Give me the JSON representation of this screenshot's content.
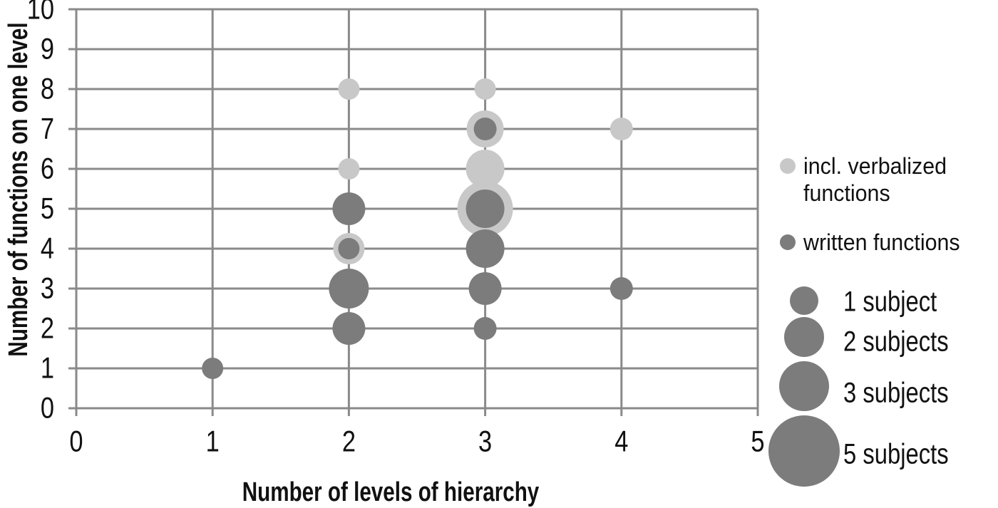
{
  "chart_data": {
    "type": "bubble",
    "title": "",
    "xlabel": "Number of levels of hierarchy",
    "ylabel": "Number of functions on one level",
    "xlim": [
      0,
      5
    ],
    "ylim": [
      0,
      10
    ],
    "xtick_labels": [
      "0",
      "1",
      "2",
      "3",
      "4",
      "5"
    ],
    "ytick_labels": [
      "0",
      "1",
      "2",
      "3",
      "4",
      "5",
      "6",
      "7",
      "8",
      "9",
      "10"
    ],
    "grid": true,
    "legend_position": "right",
    "series": [
      {
        "name": "incl. verbalized functions",
        "color": "#c8c8c8",
        "points": [
          {
            "x": 2,
            "y": 8,
            "subjects": 1,
            "r": 15
          },
          {
            "x": 2,
            "y": 6,
            "subjects": 1,
            "r": 15
          },
          {
            "x": 2,
            "y": 4,
            "subjects": 2,
            "r": 22
          },
          {
            "x": 3,
            "y": 8,
            "subjects": 1,
            "r": 15
          },
          {
            "x": 3,
            "y": 7,
            "subjects": 3,
            "r": 26
          },
          {
            "x": 3,
            "y": 6,
            "subjects": 3,
            "r": 27
          },
          {
            "x": 3,
            "y": 5,
            "subjects": 5,
            "r": 39
          },
          {
            "x": 4,
            "y": 7,
            "subjects": 1,
            "r": 16
          }
        ]
      },
      {
        "name": "written functions",
        "color": "#7c7c7c",
        "points": [
          {
            "x": 1,
            "y": 1,
            "subjects": 1,
            "r": 15
          },
          {
            "x": 2,
            "y": 2,
            "subjects": 2,
            "r": 23
          },
          {
            "x": 2,
            "y": 3,
            "subjects": 3,
            "r": 28
          },
          {
            "x": 2,
            "y": 4,
            "subjects": 1,
            "r": 15
          },
          {
            "x": 2,
            "y": 5,
            "subjects": 2,
            "r": 23
          },
          {
            "x": 3,
            "y": 2,
            "subjects": 1,
            "r": 16
          },
          {
            "x": 3,
            "y": 3,
            "subjects": 2,
            "r": 23
          },
          {
            "x": 3,
            "y": 4,
            "subjects": 3,
            "r": 27
          },
          {
            "x": 3,
            "y": 5,
            "subjects": 3,
            "r": 27
          },
          {
            "x": 3,
            "y": 7,
            "subjects": 1,
            "r": 16
          },
          {
            "x": 4,
            "y": 3,
            "subjects": 1,
            "r": 16
          }
        ]
      }
    ],
    "legend": {
      "series_items": [
        {
          "label_lines": [
            "incl. verbalized",
            "functions"
          ],
          "color": "#c8c8c8"
        },
        {
          "label_lines": [
            "written functions"
          ],
          "color": "#7c7c7c"
        }
      ],
      "size_items": [
        {
          "label": "1 subject",
          "subjects": 1,
          "r": 20
        },
        {
          "label": "2 subjects",
          "subjects": 2,
          "r": 28
        },
        {
          "label": "3 subjects",
          "subjects": 3,
          "r": 35
        },
        {
          "label": "5 subjects",
          "subjects": 5,
          "r": 50
        }
      ],
      "size_color": "#7c7c7c"
    },
    "colors": {
      "grid": "#8a8a8a",
      "text": "#111111",
      "background": "#ffffff"
    }
  }
}
